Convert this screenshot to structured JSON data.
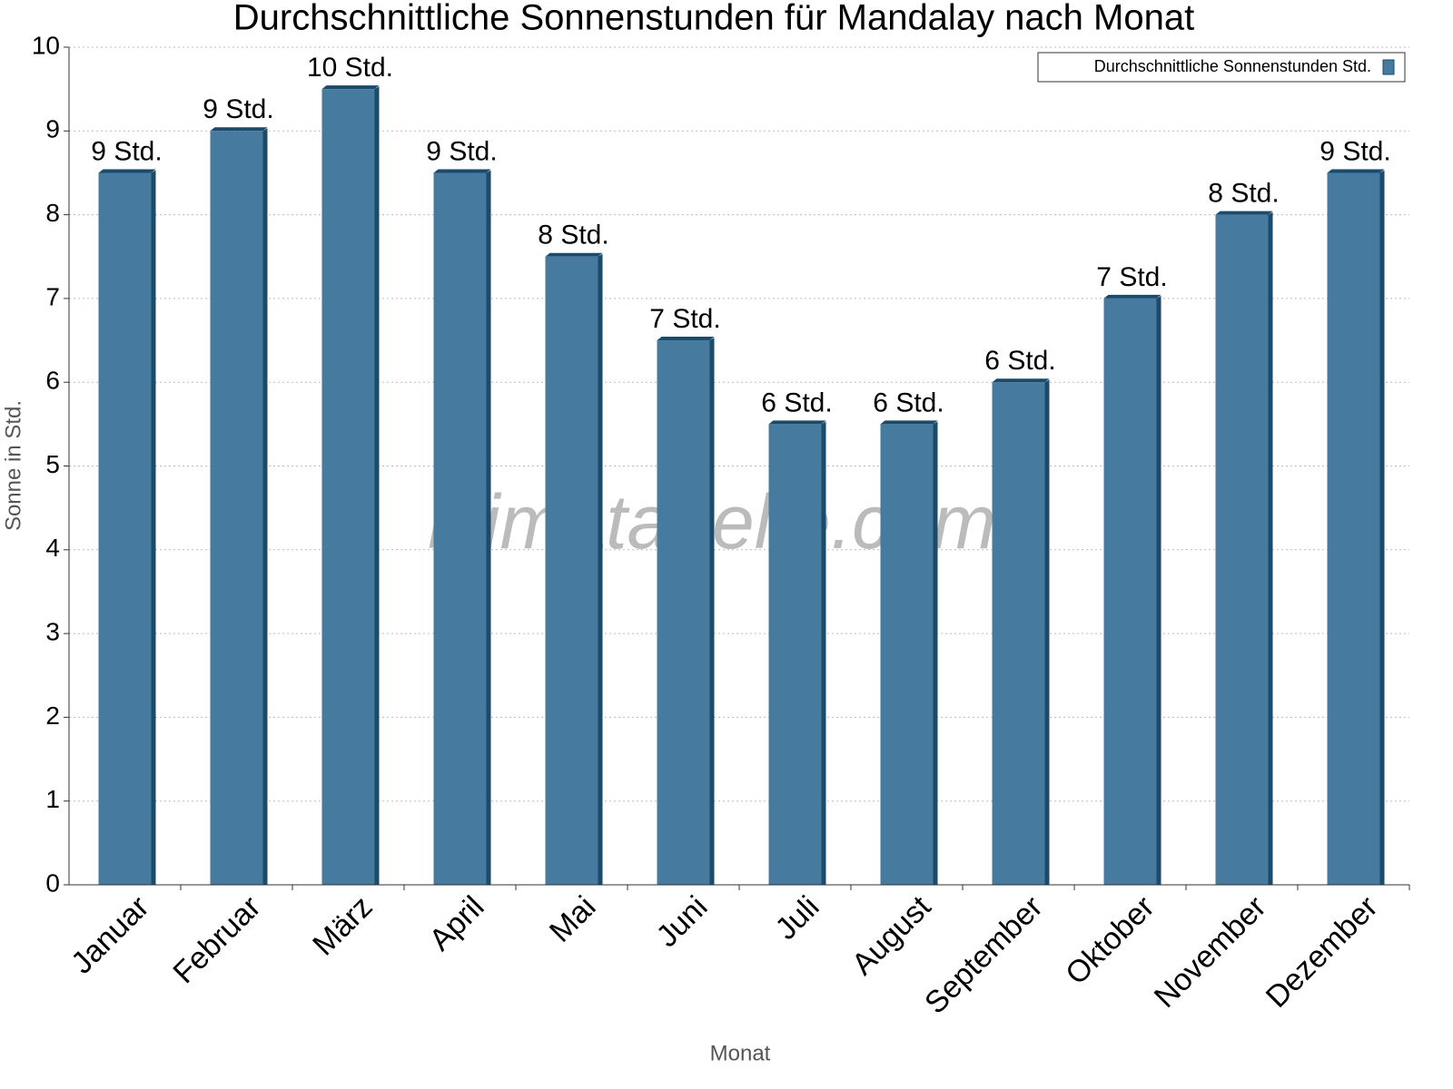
{
  "chart_data": {
    "type": "bar",
    "title": "Durchschnittliche Sonnenstunden für Mandalay nach Monat",
    "x_label": "Monat",
    "y_label": "Sonne in Std.",
    "watermark": "klimatabelle.com",
    "categories": [
      "Januar",
      "Februar",
      "März",
      "April",
      "Mai",
      "Juni",
      "Juli",
      "August",
      "September",
      "Oktober",
      "November",
      "Dezember"
    ],
    "series": [
      {
        "name": "Durchschnittliche Sonnenstunden Std.",
        "color": "#467a9e",
        "values": [
          8.5,
          9,
          9.5,
          8.5,
          7.5,
          6.5,
          5.5,
          5.5,
          6,
          7,
          8,
          8.5
        ],
        "value_labels": [
          "9 Std.",
          "9 Std.",
          "10 Std.",
          "9 Std.",
          "8 Std.",
          "7 Std.",
          "6 Std.",
          "6 Std.",
          "6 Std.",
          "7 Std.",
          "8 Std.",
          "9 Std."
        ]
      }
    ],
    "ylim": [
      0,
      10
    ],
    "yticks": [
      0,
      1,
      2,
      3,
      4,
      5,
      6,
      7,
      8,
      9,
      10
    ],
    "grid": true,
    "legend": "top-right"
  }
}
